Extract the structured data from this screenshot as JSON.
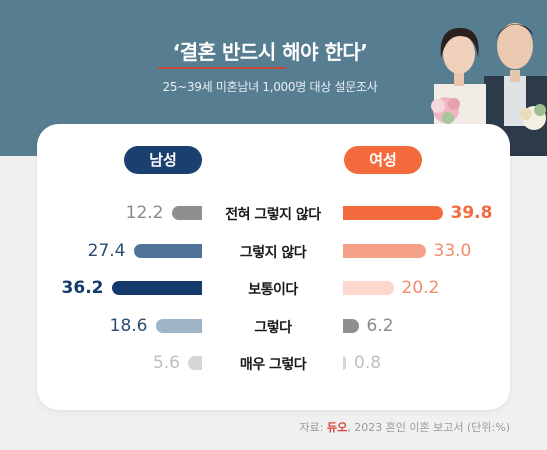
{
  "header": {
    "title": "‘결혼 반드시 해야 한다’",
    "subtitle": "25~39세 미혼남녀 1,000명 대상 설문조사"
  },
  "legend": {
    "male": "남성",
    "female": "여성"
  },
  "source": {
    "prefix": "자료:",
    "logo_text": "듀오",
    "suffix": ", 2023 혼인 이혼 보고서 (단위:%)"
  },
  "chart_data": {
    "type": "bar",
    "orientation": "horizontal",
    "layout": "butterfly",
    "unit": "%",
    "categories": [
      "전혀 그렇지 않다",
      "그렇지 않다",
      "보통이다",
      "그렇다",
      "매우 그렇다"
    ],
    "series": [
      {
        "name": "남성",
        "values": [
          12.2,
          27.4,
          36.2,
          18.6,
          5.6
        ],
        "colors": [
          "#8f8f8f",
          "#4e7298",
          "#133a6b",
          "#9fb4c7",
          "#d6d6d6"
        ],
        "label_colors": [
          "#8a8a8a",
          "#2b4d72",
          "#133a6b",
          "#2b4d72",
          "#bfbfbf"
        ]
      },
      {
        "name": "여성",
        "values": [
          39.8,
          33.0,
          20.2,
          6.2,
          0.8
        ],
        "display_values": [
          "39.8",
          "33.0",
          "20.2",
          "6.2",
          "0.8"
        ],
        "colors": [
          "#f36b3d",
          "#f5a188",
          "#fbd7cc",
          "#8f8f8f",
          "#d6d6d6"
        ],
        "label_colors": [
          "#f36b3d",
          "#f28a6b",
          "#f28a6b",
          "#8a8a8a",
          "#bfbfbf"
        ]
      }
    ],
    "highlight": {
      "male": 2,
      "female": 0
    }
  },
  "colors": {
    "banner": "#577d91",
    "male_accent": "#1b3f6e",
    "female_accent": "#f36b3d"
  }
}
